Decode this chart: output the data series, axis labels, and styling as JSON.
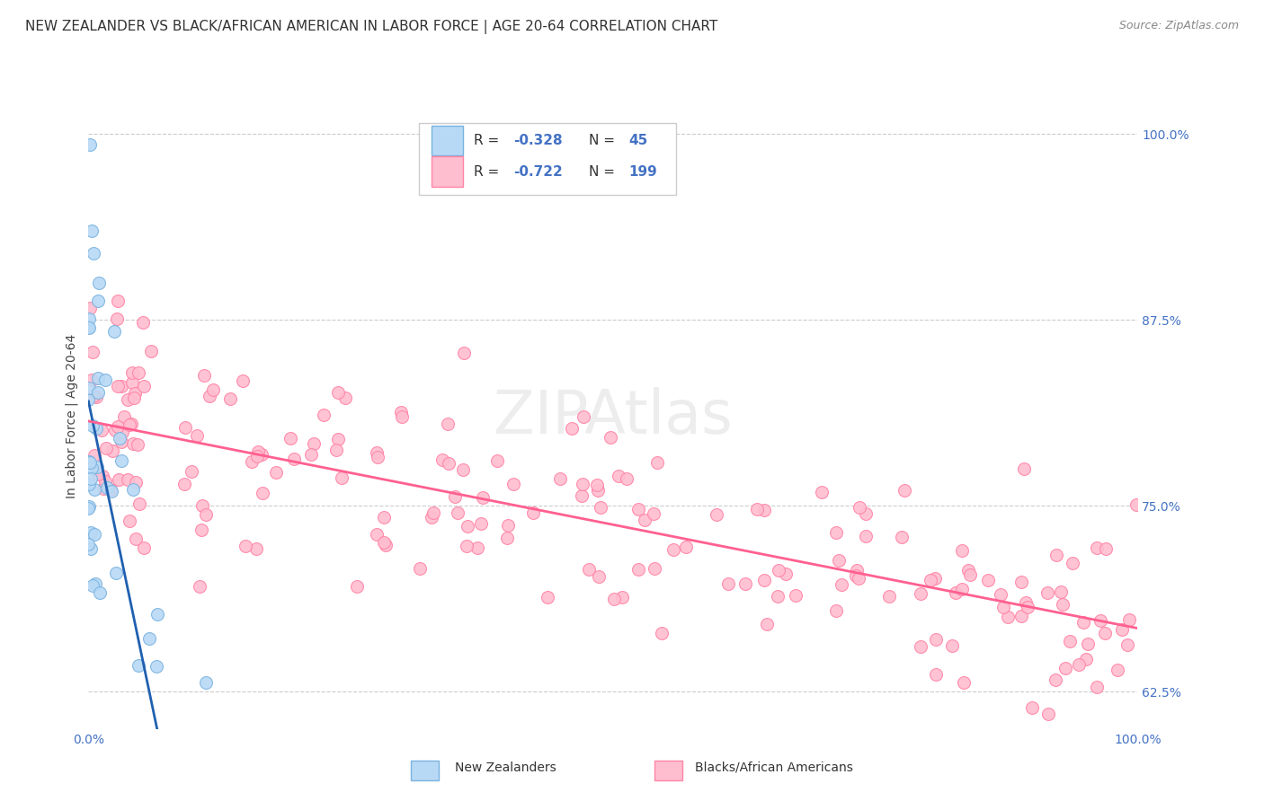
{
  "title": "NEW ZEALANDER VS BLACK/AFRICAN AMERICAN IN LABOR FORCE | AGE 20-64 CORRELATION CHART",
  "source": "Source: ZipAtlas.com",
  "ylabel": "In Labor Force | Age 20-64",
  "xmin": 0.0,
  "xmax": 1.0,
  "ymin": 0.6,
  "ymax": 1.02,
  "ytick_labels": [
    "100.0%",
    "87.5%",
    "75.0%",
    "62.5%"
  ],
  "ytick_positions": [
    1.0,
    0.875,
    0.75,
    0.625
  ],
  "xtick_labels": [
    "0.0%",
    "100.0%"
  ],
  "xtick_positions": [
    0.0,
    1.0
  ],
  "grid_color": "#cccccc",
  "background_color": "#ffffff",
  "nz_color": "#b8d9f5",
  "nz_edge_color": "#7ab3e0",
  "baa_color": "#ffbdd0",
  "baa_edge_color": "#ff85a5",
  "nz_R": -0.328,
  "nz_N": 45,
  "baa_R": -0.722,
  "baa_N": 199,
  "nz_line_color": "#2060b0",
  "baa_line_color": "#ff6090",
  "nz_trendline_ext_color": "#bbbbbb",
  "legend_label_nz": "New Zealanders",
  "legend_label_baa": "Blacks/African Americans",
  "title_fontsize": 11,
  "source_fontsize": 9,
  "ylabel_fontsize": 10,
  "tick_fontsize": 10,
  "legend_fontsize": 10,
  "stat_fontsize": 11,
  "watermark_text": "ZIPAtlas"
}
